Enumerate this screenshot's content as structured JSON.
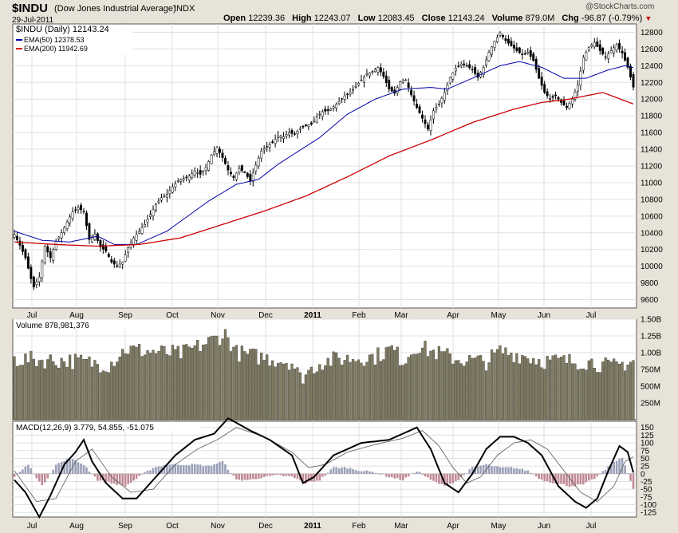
{
  "header": {
    "symbol": "$INDU",
    "name": "(Dow Jones Industrial Average)",
    "exchange": "INDX",
    "date": "29-Jul-2011",
    "open_label": "Open",
    "open": "12239.36",
    "high_label": "High",
    "high": "12243.07",
    "low_label": "Low",
    "low": "12083.45",
    "close_label": "Close",
    "close": "12143.24",
    "volume_label": "Volume",
    "volume": "879.0M",
    "chg_label": "Chg",
    "chg": "-96.87 (-0.79%)",
    "down_arrow": "▼",
    "brand": "@StockCharts.com"
  },
  "chart_data": [
    {
      "type": "candlestick",
      "title": "$INDU (Daily) 12143.24",
      "legend": [
        {
          "name": "EMA(50) 12378.53",
          "color": "#0000aa"
        },
        {
          "name": "EMA(200) 11942.69",
          "color": "#cc0000"
        }
      ],
      "ylim": [
        9500,
        12900
      ],
      "yticks": [
        9600,
        9800,
        10000,
        10200,
        10400,
        10600,
        10800,
        11000,
        11200,
        11400,
        11600,
        11800,
        12000,
        12200,
        12400,
        12600,
        12800
      ],
      "months": [
        "Jul",
        "Aug",
        "Sep",
        "Oct",
        "Nov",
        "Dec",
        "2011",
        "Feb",
        "Mar",
        "Apr",
        "May",
        "Jun",
        "Jul"
      ],
      "close_anchors": [
        [
          0,
          10380
        ],
        [
          2,
          10250
        ],
        [
          4,
          10100
        ],
        [
          6,
          9850
        ],
        [
          7,
          9750
        ],
        [
          9,
          9870
        ],
        [
          11,
          10240
        ],
        [
          13,
          10100
        ],
        [
          15,
          10300
        ],
        [
          17,
          10400
        ],
        [
          19,
          10530
        ],
        [
          21,
          10650
        ],
        [
          23,
          10700
        ],
        [
          25,
          10650
        ],
        [
          27,
          10320
        ],
        [
          29,
          10380
        ],
        [
          31,
          10230
        ],
        [
          33,
          10180
        ],
        [
          35,
          10050
        ],
        [
          37,
          10000
        ],
        [
          39,
          10050
        ],
        [
          41,
          10220
        ],
        [
          43,
          10340
        ],
        [
          45,
          10420
        ],
        [
          47,
          10500
        ],
        [
          49,
          10620
        ],
        [
          51,
          10740
        ],
        [
          53,
          10820
        ],
        [
          55,
          10860
        ],
        [
          57,
          10950
        ],
        [
          59,
          11020
        ],
        [
          61,
          11050
        ],
        [
          63,
          11080
        ],
        [
          65,
          11140
        ],
        [
          67,
          11100
        ],
        [
          69,
          11180
        ],
        [
          71,
          11330
        ],
        [
          73,
          11420
        ],
        [
          75,
          11300
        ],
        [
          77,
          11150
        ],
        [
          79,
          11060
        ],
        [
          81,
          11170
        ],
        [
          83,
          11120
        ],
        [
          85,
          11020
        ],
        [
          87,
          11210
        ],
        [
          89,
          11380
        ],
        [
          91,
          11430
        ],
        [
          93,
          11480
        ],
        [
          95,
          11560
        ],
        [
          97,
          11550
        ],
        [
          99,
          11600
        ],
        [
          101,
          11580
        ],
        [
          103,
          11650
        ],
        [
          105,
          11680
        ],
        [
          107,
          11700
        ],
        [
          109,
          11790
        ],
        [
          111,
          11850
        ],
        [
          113,
          11860
        ],
        [
          115,
          11910
        ],
        [
          117,
          11970
        ],
        [
          119,
          12040
        ],
        [
          121,
          12080
        ],
        [
          123,
          12150
        ],
        [
          125,
          12230
        ],
        [
          127,
          12300
        ],
        [
          129,
          12330
        ],
        [
          131,
          12380
        ],
        [
          133,
          12270
        ],
        [
          135,
          12120
        ],
        [
          137,
          12070
        ],
        [
          139,
          12210
        ],
        [
          141,
          12230
        ],
        [
          143,
          12050
        ],
        [
          145,
          11900
        ],
        [
          147,
          11770
        ],
        [
          149,
          11640
        ],
        [
          151,
          11860
        ],
        [
          153,
          11940
        ],
        [
          155,
          12080
        ],
        [
          157,
          12260
        ],
        [
          159,
          12370
        ],
        [
          161,
          12420
        ],
        [
          163,
          12400
        ],
        [
          165,
          12350
        ],
        [
          167,
          12260
        ],
        [
          169,
          12380
        ],
        [
          171,
          12560
        ],
        [
          173,
          12690
        ],
        [
          175,
          12790
        ],
        [
          177,
          12700
        ],
        [
          179,
          12640
        ],
        [
          181,
          12580
        ],
        [
          183,
          12530
        ],
        [
          185,
          12560
        ],
        [
          187,
          12460
        ],
        [
          189,
          12250
        ],
        [
          191,
          12080
        ],
        [
          193,
          12000
        ],
        [
          195,
          12040
        ],
        [
          197,
          11960
        ],
        [
          199,
          11900
        ],
        [
          201,
          12000
        ],
        [
          203,
          12170
        ],
        [
          205,
          12500
        ],
        [
          207,
          12620
        ],
        [
          209,
          12680
        ],
        [
          211,
          12580
        ],
        [
          213,
          12500
        ],
        [
          215,
          12580
        ],
        [
          217,
          12650
        ],
        [
          219,
          12550
        ],
        [
          221,
          12380
        ],
        [
          223,
          12143
        ]
      ],
      "ema50_anchors": [
        [
          0,
          10420
        ],
        [
          10,
          10310
        ],
        [
          20,
          10290
        ],
        [
          30,
          10360
        ],
        [
          36,
          10260
        ],
        [
          44,
          10260
        ],
        [
          55,
          10420
        ],
        [
          70,
          10780
        ],
        [
          80,
          10980
        ],
        [
          88,
          11040
        ],
        [
          95,
          11220
        ],
        [
          110,
          11540
        ],
        [
          120,
          11820
        ],
        [
          130,
          12000
        ],
        [
          140,
          12120
        ],
        [
          150,
          12140
        ],
        [
          156,
          12120
        ],
        [
          165,
          12250
        ],
        [
          175,
          12400
        ],
        [
          182,
          12450
        ],
        [
          190,
          12380
        ],
        [
          198,
          12250
        ],
        [
          206,
          12250
        ],
        [
          214,
          12350
        ],
        [
          220,
          12400
        ],
        [
          223,
          12378
        ]
      ],
      "ema200_anchors": [
        [
          0,
          10290
        ],
        [
          15,
          10260
        ],
        [
          30,
          10240
        ],
        [
          45,
          10260
        ],
        [
          60,
          10340
        ],
        [
          75,
          10500
        ],
        [
          90,
          10660
        ],
        [
          105,
          10840
        ],
        [
          120,
          11070
        ],
        [
          135,
          11320
        ],
        [
          150,
          11510
        ],
        [
          165,
          11720
        ],
        [
          180,
          11880
        ],
        [
          190,
          11960
        ],
        [
          200,
          12000
        ],
        [
          212,
          12080
        ],
        [
          223,
          11942
        ]
      ]
    },
    {
      "type": "bar",
      "title": "Volume 878,981,376",
      "ylim": [
        0,
        1500
      ],
      "yticks": [
        "250M",
        "500M",
        "750M",
        "1.00B",
        "1.25B",
        "1.50B"
      ],
      "volume_anchors": [
        [
          0,
          900
        ],
        [
          20,
          880
        ],
        [
          34,
          820
        ],
        [
          40,
          1050
        ],
        [
          60,
          980
        ],
        [
          68,
          1120
        ],
        [
          76,
          1280
        ],
        [
          80,
          1000
        ],
        [
          86,
          950
        ],
        [
          100,
          860
        ],
        [
          103,
          620
        ],
        [
          110,
          850
        ],
        [
          116,
          900
        ],
        [
          130,
          940
        ],
        [
          136,
          1060
        ],
        [
          140,
          880
        ],
        [
          145,
          1100
        ],
        [
          150,
          1020
        ],
        [
          160,
          900
        ],
        [
          170,
          860
        ],
        [
          175,
          1020
        ],
        [
          185,
          940
        ],
        [
          190,
          880
        ],
        [
          200,
          870
        ],
        [
          208,
          860
        ],
        [
          215,
          780
        ],
        [
          223,
          879
        ]
      ]
    },
    {
      "type": "line",
      "title": "MACD(12,26,9) 3.779, 54.855, -51.075",
      "ylim": [
        -140,
        170
      ],
      "yticks": [
        -125,
        -100,
        -75,
        -50,
        -25,
        0,
        25,
        50,
        75,
        100,
        125,
        150
      ],
      "macd_anchors": [
        [
          0,
          -20
        ],
        [
          4,
          -60
        ],
        [
          9,
          -140
        ],
        [
          13,
          -70
        ],
        [
          18,
          30
        ],
        [
          22,
          70
        ],
        [
          25,
          110
        ],
        [
          28,
          40
        ],
        [
          33,
          -30
        ],
        [
          39,
          -80
        ],
        [
          44,
          -80
        ],
        [
          50,
          -20
        ],
        [
          58,
          60
        ],
        [
          65,
          110
        ],
        [
          72,
          130
        ],
        [
          77,
          180
        ],
        [
          85,
          140
        ],
        [
          92,
          110
        ],
        [
          100,
          60
        ],
        [
          104,
          -30
        ],
        [
          108,
          -10
        ],
        [
          115,
          60
        ],
        [
          125,
          100
        ],
        [
          135,
          110
        ],
        [
          145,
          150
        ],
        [
          150,
          80
        ],
        [
          155,
          -30
        ],
        [
          160,
          -60
        ],
        [
          165,
          0
        ],
        [
          170,
          80
        ],
        [
          175,
          120
        ],
        [
          180,
          120
        ],
        [
          185,
          100
        ],
        [
          190,
          60
        ],
        [
          196,
          -40
        ],
        [
          202,
          -90
        ],
        [
          206,
          -110
        ],
        [
          210,
          -80
        ],
        [
          214,
          10
        ],
        [
          218,
          90
        ],
        [
          221,
          70
        ],
        [
          223,
          4
        ]
      ],
      "signal_anchors": [
        [
          0,
          10
        ],
        [
          8,
          -90
        ],
        [
          15,
          -80
        ],
        [
          22,
          40
        ],
        [
          28,
          80
        ],
        [
          35,
          -10
        ],
        [
          42,
          -60
        ],
        [
          50,
          -50
        ],
        [
          58,
          30
        ],
        [
          66,
          80
        ],
        [
          73,
          110
        ],
        [
          80,
          150
        ],
        [
          90,
          120
        ],
        [
          100,
          70
        ],
        [
          106,
          20
        ],
        [
          112,
          30
        ],
        [
          120,
          70
        ],
        [
          130,
          95
        ],
        [
          140,
          115
        ],
        [
          147,
          140
        ],
        [
          153,
          90
        ],
        [
          158,
          20
        ],
        [
          163,
          -30
        ],
        [
          168,
          -10
        ],
        [
          174,
          60
        ],
        [
          180,
          100
        ],
        [
          186,
          110
        ],
        [
          192,
          80
        ],
        [
          198,
          10
        ],
        [
          204,
          -60
        ],
        [
          210,
          -90
        ],
        [
          216,
          -40
        ],
        [
          220,
          40
        ],
        [
          223,
          55
        ]
      ],
      "hist_anchors": [
        [
          0,
          -10
        ],
        [
          5,
          30
        ],
        [
          10,
          -40
        ],
        [
          15,
          30
        ],
        [
          20,
          50
        ],
        [
          25,
          30
        ],
        [
          30,
          -20
        ],
        [
          35,
          -30
        ],
        [
          40,
          -40
        ],
        [
          45,
          -10
        ],
        [
          50,
          20
        ],
        [
          55,
          30
        ],
        [
          60,
          30
        ],
        [
          65,
          30
        ],
        [
          70,
          25
        ],
        [
          75,
          40
        ],
        [
          80,
          -20
        ],
        [
          85,
          -20
        ],
        [
          90,
          -10
        ],
        [
          95,
          -5
        ],
        [
          100,
          -10
        ],
        [
          105,
          -30
        ],
        [
          110,
          -20
        ],
        [
          115,
          20
        ],
        [
          120,
          20
        ],
        [
          125,
          10
        ],
        [
          130,
          5
        ],
        [
          135,
          -10
        ],
        [
          140,
          -20
        ],
        [
          145,
          10
        ],
        [
          150,
          -20
        ],
        [
          155,
          -40
        ],
        [
          160,
          -20
        ],
        [
          165,
          20
        ],
        [
          170,
          30
        ],
        [
          175,
          20
        ],
        [
          180,
          20
        ],
        [
          185,
          10
        ],
        [
          190,
          -20
        ],
        [
          195,
          -30
        ],
        [
          200,
          -40
        ],
        [
          205,
          -35
        ],
        [
          210,
          -10
        ],
        [
          215,
          30
        ],
        [
          219,
          55
        ],
        [
          223,
          -51
        ]
      ]
    }
  ]
}
